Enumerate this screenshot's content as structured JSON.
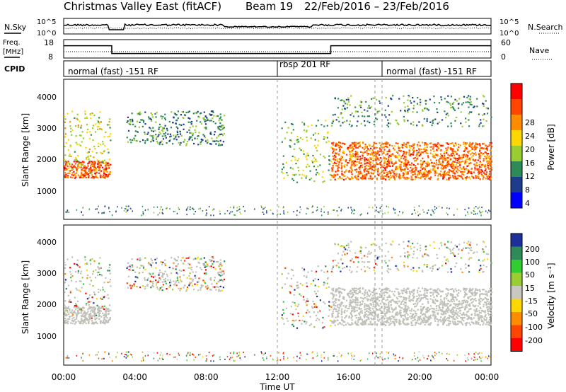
{
  "title": {
    "station": "Christmas Valley East (fitACF)",
    "beam": "Beam 19",
    "dates": "22/Feb/2016 – 23/Feb/2016"
  },
  "noise_panel": {
    "left_label": "N.Sky",
    "right_label": "N.Search",
    "left_ticks": [
      "10^5",
      "10^0"
    ],
    "right_ticks": [
      "10^5",
      "10^0"
    ]
  },
  "freq_panel": {
    "left_label": "Freq.",
    "left_unit": "[MHz]",
    "left_ticks": [
      "18",
      "8"
    ],
    "right_label": "Nave",
    "right_ticks": [
      "60",
      "0"
    ],
    "cpid_label": "CPID"
  },
  "cpid_segments": [
    {
      "label": "normal (fast) -151 RF",
      "start_h": 0,
      "end_h": 12
    },
    {
      "label": "rbsp 201 RF",
      "start_h": 12,
      "end_h": 18
    },
    {
      "label": "normal (fast) -151 RF",
      "start_h": 18,
      "end_h": 24
    }
  ],
  "x_axis": {
    "label": "Time UT",
    "ticks": [
      "00:00",
      "04:00",
      "08:00",
      "12:00",
      "16:00",
      "20:00",
      "00:00"
    ]
  },
  "power_panel": {
    "ylabel": "Slant Range [km]",
    "yticks": [
      "4000",
      "3000",
      "2000",
      "1000"
    ],
    "colorbar_label": "Power [dB]",
    "colorbar_ticks": [
      "28",
      "24",
      "20",
      "16",
      "12",
      "8",
      "4"
    ],
    "colors": [
      "#ff0000",
      "#ff4500",
      "#ff8c00",
      "#ffd700",
      "#9acd32",
      "#2e8b57",
      "#1e3c8c",
      "#0000ff"
    ]
  },
  "velocity_panel": {
    "ylabel": "Slant Range [km]",
    "yticks": [
      "4000",
      "3000",
      "2000",
      "1000"
    ],
    "colorbar_label": "Velocity [m s⁻¹]",
    "colorbar_ticks": [
      "200",
      "100",
      "50",
      "15",
      "-15",
      "-50",
      "-100",
      "-200"
    ],
    "colors": [
      "#1c2f9a",
      "#2e8b57",
      "#32cd32",
      "#9acd32",
      "#c8c8c0",
      "#ffd700",
      "#ff8c00",
      "#ff4500",
      "#ff0000"
    ],
    "ground_scatter_color": "#c0c0b8"
  },
  "chart_data": {
    "type": "heatmap",
    "x_range_hours": [
      0,
      24
    ],
    "y_range_km": [
      0,
      4500
    ],
    "gridlines": "dashed vertical at 12:00, 17:30 and 18:00 UT",
    "scatter_regions": [
      {
        "name": "near-range E-region band",
        "t_start": 0.0,
        "t_end": 2.6,
        "range_start": 1350,
        "range_end": 1900,
        "power_db": 26
      },
      {
        "name": "slanted F band",
        "t_start": 0.0,
        "t_end": 2.6,
        "range_start": 1500,
        "range_end": 3500,
        "power_db": 16
      },
      {
        "name": "far-range patch",
        "t_start": 3.5,
        "t_end": 9.0,
        "range_start": 2400,
        "range_end": 3500,
        "power_db": 10
      },
      {
        "name": "rbsp slant",
        "t_start": 12.2,
        "t_end": 15.0,
        "range_start": 1200,
        "range_end": 3200,
        "power_db": 14
      },
      {
        "name": "main ground-scatter band",
        "t_start": 15.0,
        "t_end": 24.0,
        "range_start": 1300,
        "range_end": 2500,
        "power_db": 24
      },
      {
        "name": "far-range echoes",
        "t_start": 15.0,
        "t_end": 24.0,
        "range_start": 3000,
        "range_end": 4000,
        "power_db": 10
      }
    ],
    "noise_sky_level": "~10^1–10^2",
    "freq_mhz": [
      {
        "t": 0,
        "v": 15
      },
      {
        "t": 2.7,
        "v": 10
      },
      {
        "t": 15.0,
        "v": 15
      },
      {
        "t": 24,
        "v": 15
      }
    ],
    "nave": [
      {
        "t": 0,
        "v": 24
      },
      {
        "t": 24,
        "v": 24
      }
    ]
  }
}
